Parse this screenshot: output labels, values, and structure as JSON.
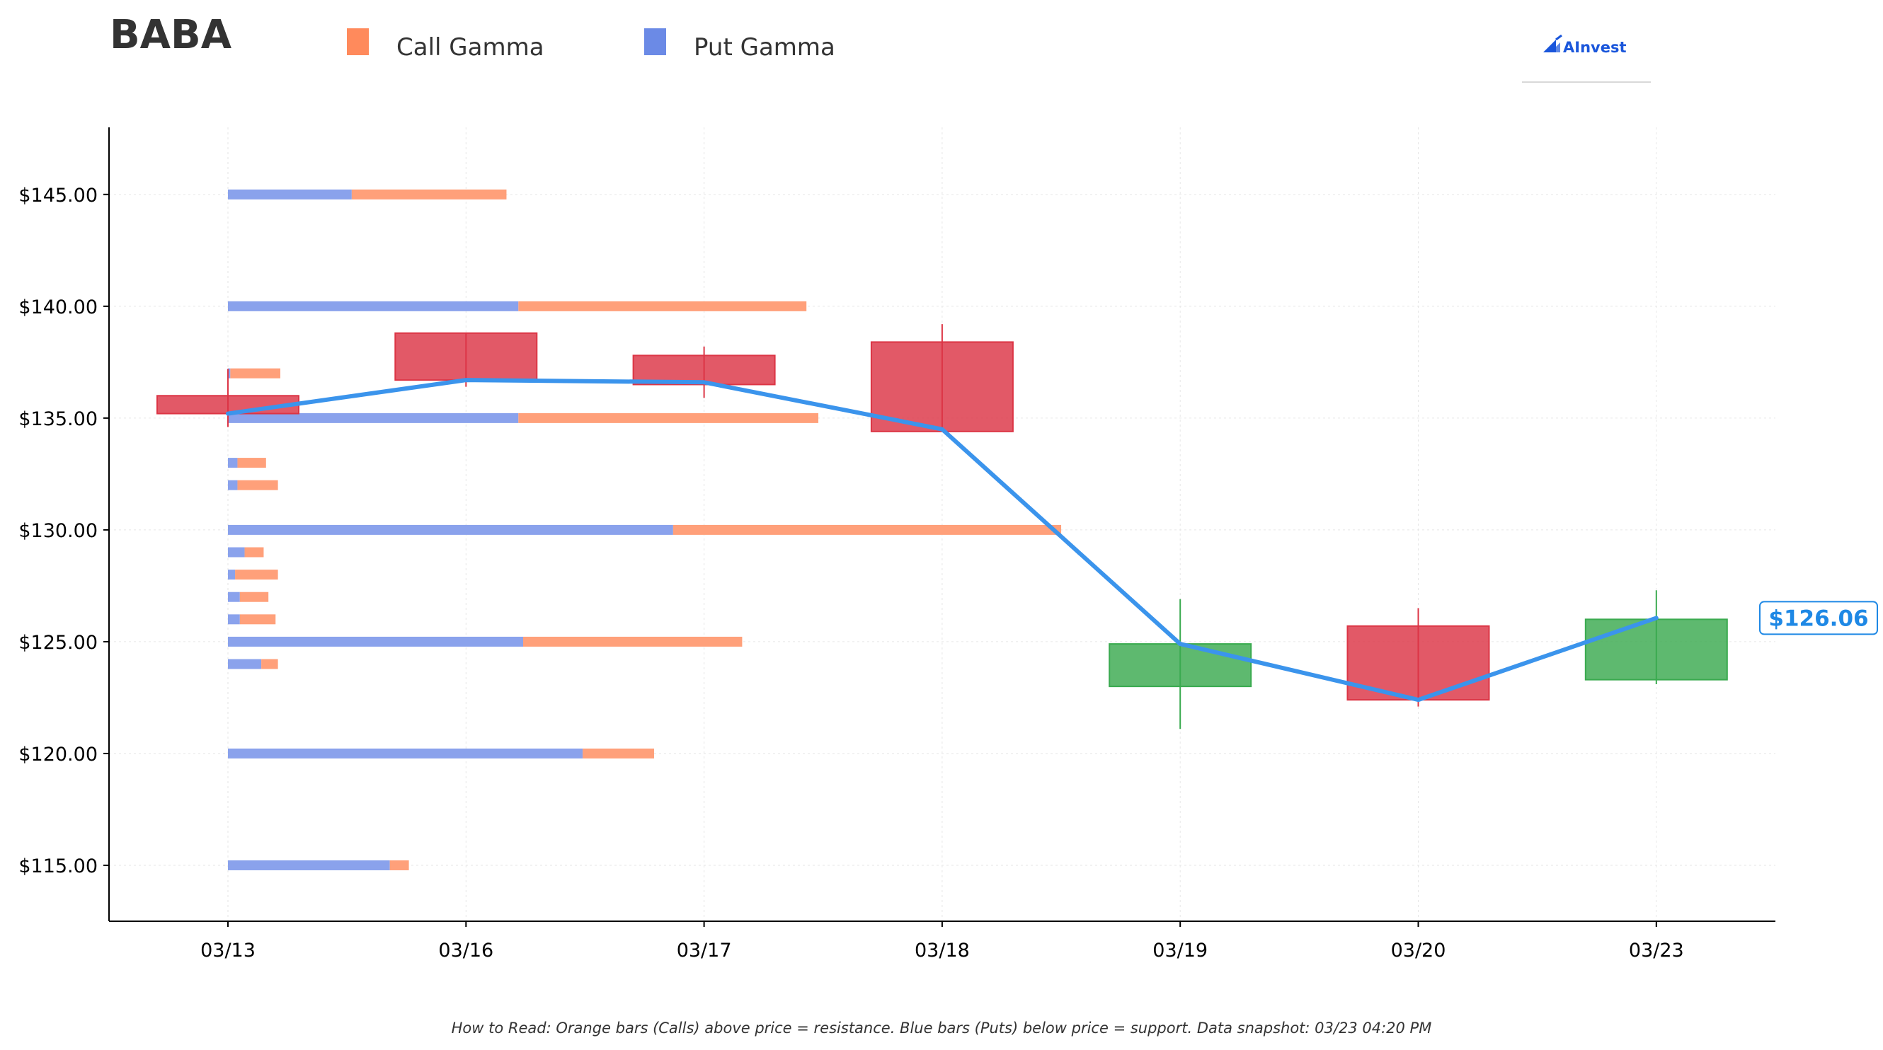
{
  "chart_data": {
    "type": "candlestick",
    "title": "BABA",
    "legend": [
      {
        "name": "Call Gamma",
        "color": "#ff8a5c"
      },
      {
        "name": "Put Gamma",
        "color": "#6b8ae6"
      }
    ],
    "legend_placement": "top",
    "logo_text": "AInvest",
    "x_categories": [
      "03/13",
      "03/16",
      "03/17",
      "03/18",
      "03/19",
      "03/20",
      "03/23"
    ],
    "y_range": [
      112.5,
      148.0
    ],
    "y_ticks": [
      {
        "value": 145,
        "label": "$145.00"
      },
      {
        "value": 140,
        "label": "$140.00"
      },
      {
        "value": 135,
        "label": "$135.00"
      },
      {
        "value": 130,
        "label": "$130.00"
      },
      {
        "value": 125,
        "label": "$125.00"
      },
      {
        "value": 120,
        "label": "$120.00"
      },
      {
        "value": 115,
        "label": "$115.00"
      }
    ],
    "grid": true,
    "candles": [
      {
        "date": "03/13",
        "open": 136.0,
        "close": 135.2,
        "high": 137.2,
        "low": 134.6,
        "direction": "down"
      },
      {
        "date": "03/16",
        "open": 138.8,
        "close": 136.7,
        "high": 138.8,
        "low": 136.4,
        "direction": "down"
      },
      {
        "date": "03/17",
        "open": 137.8,
        "close": 136.5,
        "high": 138.2,
        "low": 135.9,
        "direction": "down"
      },
      {
        "date": "03/18",
        "open": 138.4,
        "close": 134.4,
        "high": 139.2,
        "low": 134.4,
        "direction": "down"
      },
      {
        "date": "03/19",
        "open": 123.0,
        "close": 124.9,
        "high": 126.9,
        "low": 121.1,
        "direction": "up"
      },
      {
        "date": "03/20",
        "open": 125.7,
        "close": 122.4,
        "high": 126.5,
        "low": 122.1,
        "direction": "down"
      },
      {
        "date": "03/23",
        "open": 123.3,
        "close": 126.0,
        "high": 127.3,
        "low": 123.1,
        "direction": "up"
      }
    ],
    "close_line": [
      {
        "date": "03/13",
        "value": 135.2
      },
      {
        "date": "03/16",
        "value": 136.7
      },
      {
        "date": "03/17",
        "value": 136.6
      },
      {
        "date": "03/18",
        "value": 134.5
      },
      {
        "date": "03/19",
        "value": 124.9
      },
      {
        "date": "03/20",
        "value": 122.4
      },
      {
        "date": "03/23",
        "value": 126.06
      }
    ],
    "last_price_label": "$126.06",
    "gamma_units": "x-category spans from 03/13",
    "gamma_bars": [
      {
        "strike": 145,
        "put": 0.52,
        "call": 0.65
      },
      {
        "strike": 140,
        "put": 1.22,
        "call": 1.21
      },
      {
        "strike": 137,
        "put": 0.01,
        "call": 0.21
      },
      {
        "strike": 135,
        "put": 1.22,
        "call": 1.26
      },
      {
        "strike": 133,
        "put": 0.04,
        "call": 0.12
      },
      {
        "strike": 132,
        "put": 0.04,
        "call": 0.17
      },
      {
        "strike": 130,
        "put": 1.87,
        "call": 1.63
      },
      {
        "strike": 129,
        "put": 0.07,
        "call": 0.08
      },
      {
        "strike": 128,
        "put": 0.03,
        "call": 0.18
      },
      {
        "strike": 127,
        "put": 0.05,
        "call": 0.12
      },
      {
        "strike": 126,
        "put": 0.05,
        "call": 0.15
      },
      {
        "strike": 125,
        "put": 1.24,
        "call": 0.92
      },
      {
        "strike": 124,
        "put": 0.14,
        "call": 0.07
      },
      {
        "strike": 120,
        "put": 1.49,
        "call": 0.3
      },
      {
        "strike": 115,
        "put": 0.68,
        "call": 0.08
      }
    ],
    "colors": {
      "up": "#3aaa4f",
      "down": "#dc3545",
      "line": "#3b94ec",
      "call_bar": "#ffa07a",
      "put_bar": "#8aa2ec"
    },
    "footnote": "How to Read: Orange bars (Calls) above price = resistance. Blue bars (Puts) below price = support. Data snapshot: 03/23 04:20 PM"
  }
}
